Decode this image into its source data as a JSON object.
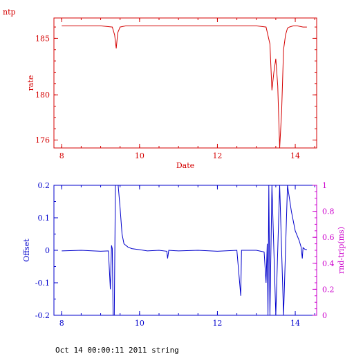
{
  "page": {
    "corner_label": "ntp",
    "footer": "Oct 14 00:00:11 2011 string"
  },
  "colors": {
    "top": "#d40000",
    "bottom": "#0000cc",
    "right_axis": "#cc00cc",
    "footer": "#000000"
  },
  "chart_data": [
    {
      "type": "line",
      "title": "",
      "xlabel": "Date",
      "ylabel": "rate",
      "xlim": [
        7.8,
        14.55
      ],
      "ylim": [
        175.3,
        186.8
      ],
      "xticks": [
        8,
        10,
        12,
        14
      ],
      "yticks": [
        176,
        180,
        185
      ],
      "series": [
        {
          "x": [
            8.0,
            9.0,
            9.3,
            9.36,
            9.4,
            9.44,
            9.5,
            9.65,
            10.0,
            11.0,
            12.0,
            13.0,
            13.25,
            13.35,
            13.4,
            13.45,
            13.5,
            13.55,
            13.6,
            13.65,
            13.7,
            13.75,
            13.8,
            13.85,
            13.95,
            14.05,
            14.2,
            14.3
          ],
          "y": [
            186.1,
            186.1,
            186.0,
            185.3,
            184.1,
            185.5,
            186.0,
            186.1,
            186.1,
            186.1,
            186.1,
            186.1,
            186.0,
            184.5,
            180.4,
            182.0,
            183.2,
            180.8,
            175.0,
            178.5,
            184.0,
            185.3,
            185.9,
            186.0,
            186.1,
            186.1,
            186.0,
            186.0
          ]
        }
      ]
    },
    {
      "type": "line",
      "title": "",
      "xlabel": "",
      "ylabel": "Offset",
      "y2label": "rnd-trip(ms)",
      "xlim": [
        7.8,
        14.55
      ],
      "ylim": [
        -0.2,
        0.2
      ],
      "y2lim": [
        0,
        1
      ],
      "xticks": [
        8,
        10,
        12,
        14
      ],
      "yticks": [
        -0.2,
        -0.1,
        0,
        0.1,
        0.2
      ],
      "y2ticks": [
        0,
        0.2,
        0.4,
        0.6,
        0.8,
        1
      ],
      "series": [
        {
          "x": [
            8.0,
            8.5,
            9.0,
            9.2,
            9.25,
            9.28,
            9.3,
            9.32,
            9.35,
            9.38,
            9.4,
            9.42,
            9.45,
            9.5,
            9.55,
            9.6,
            9.7,
            9.8,
            10.0,
            10.2,
            10.5,
            10.7,
            10.72,
            10.75,
            11.0,
            11.5,
            12.0,
            12.5,
            12.6,
            12.62,
            12.65,
            13.0,
            13.2,
            13.25,
            13.28,
            13.3,
            13.32,
            13.35,
            13.4,
            13.5,
            13.6,
            13.7,
            13.8,
            13.9,
            14.0,
            14.1,
            14.15,
            14.18,
            14.2,
            14.25,
            14.3
          ],
          "y": [
            -0.002,
            0.0,
            -0.003,
            -0.002,
            -0.12,
            0.015,
            0.005,
            -0.2,
            -0.2,
            0.2,
            0.2,
            0.2,
            0.2,
            0.13,
            0.05,
            0.02,
            0.01,
            0.005,
            0.002,
            -0.002,
            0.0,
            -0.003,
            -0.025,
            0.0,
            -0.002,
            0.0,
            -0.003,
            0.0,
            -0.14,
            0.0,
            0.0,
            0.0,
            -0.005,
            -0.1,
            0.02,
            -0.2,
            0.2,
            -0.2,
            0.2,
            -0.2,
            0.2,
            -0.2,
            0.2,
            0.12,
            0.06,
            0.03,
            0.01,
            -0.025,
            0.008,
            0.003,
            0.002
          ]
        }
      ]
    }
  ]
}
